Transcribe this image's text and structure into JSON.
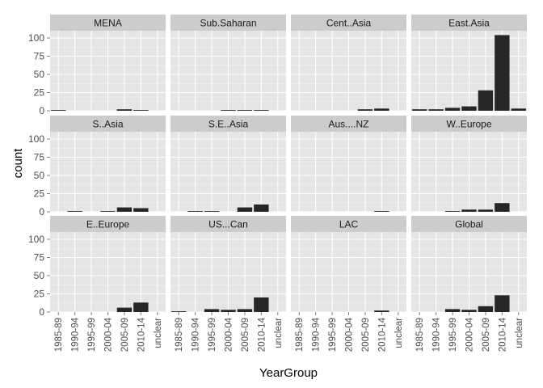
{
  "chart_data": {
    "type": "bar",
    "facet_layout": {
      "rows": 3,
      "cols": 4
    },
    "xlabel": "YearGroup",
    "ylabel": "count",
    "categories": [
      "1985-89",
      "1990-94",
      "1995-99",
      "2000-04",
      "2005-09",
      "2010-14",
      "unclear"
    ],
    "ylim": [
      0,
      110
    ],
    "yticks": [
      0,
      25,
      50,
      75,
      100
    ],
    "grid": true,
    "panel_background": "#e5e5e5",
    "strip_background": "#cccccc",
    "bar_color": "#262626",
    "panels": [
      {
        "title": "MENA",
        "values": [
          1,
          null,
          null,
          null,
          2,
          1,
          null
        ]
      },
      {
        "title": "Sub.Saharan",
        "values": [
          null,
          null,
          null,
          1,
          1,
          1,
          null
        ]
      },
      {
        "title": "Cent..Asia",
        "values": [
          null,
          null,
          null,
          null,
          2,
          3,
          null
        ]
      },
      {
        "title": "East.Asia",
        "values": [
          2,
          2,
          4,
          6,
          28,
          104,
          3
        ]
      },
      {
        "title": "S..Asia",
        "values": [
          null,
          1,
          null,
          1,
          6,
          5,
          null
        ]
      },
      {
        "title": "S.E..Asia",
        "values": [
          null,
          1,
          1,
          null,
          6,
          10,
          null
        ]
      },
      {
        "title": "Aus....NZ",
        "values": [
          null,
          null,
          null,
          null,
          null,
          1,
          null
        ]
      },
      {
        "title": "W..Europe",
        "values": [
          null,
          null,
          1,
          3,
          3,
          12,
          null
        ]
      },
      {
        "title": "E..Europe",
        "values": [
          null,
          null,
          null,
          null,
          6,
          13,
          null
        ]
      },
      {
        "title": "US...Can",
        "values": [
          1,
          null,
          4,
          3,
          4,
          20,
          null
        ]
      },
      {
        "title": "LAC",
        "values": [
          null,
          null,
          null,
          null,
          null,
          2,
          null
        ]
      },
      {
        "title": "Global",
        "values": [
          null,
          null,
          4,
          3,
          8,
          23,
          null
        ]
      }
    ]
  }
}
